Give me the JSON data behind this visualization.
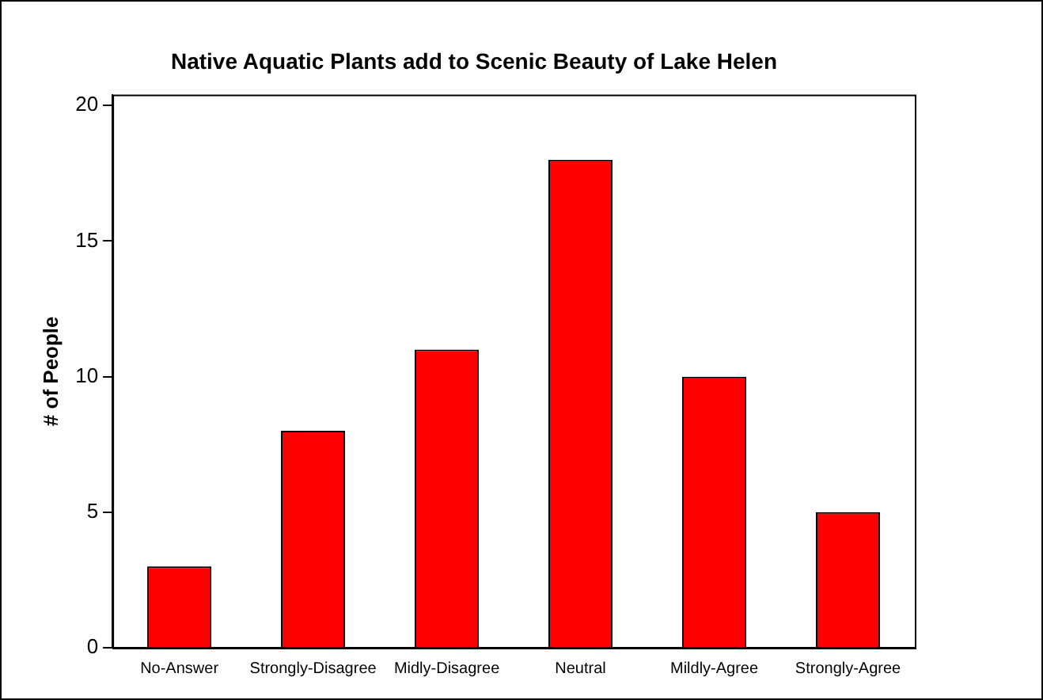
{
  "chart_data": {
    "type": "bar",
    "title": "Native Aquatic Plants add to Scenic Beauty of Lake Helen",
    "ylabel": "# of People",
    "categories": [
      "No-Answer",
      "Strongly-Disagree",
      "Midly-Disagree",
      "Neutral",
      "Mildly-Agree",
      "Strongly-Agree"
    ],
    "values": [
      3,
      8,
      11,
      18,
      10,
      5
    ],
    "color": "#ff0000",
    "ylim": [
      0,
      20.4
    ],
    "yticks": [
      0,
      5,
      10,
      15,
      20
    ],
    "grid": false,
    "legend": false
  }
}
